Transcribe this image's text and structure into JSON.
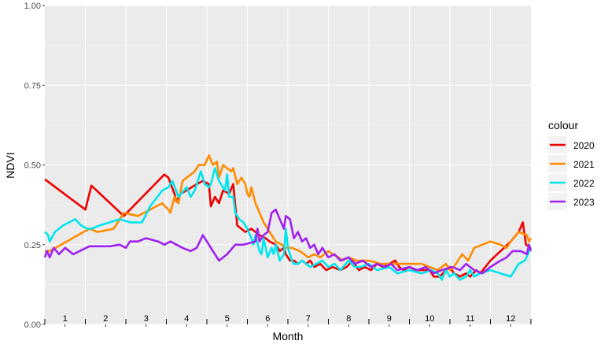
{
  "chart_data": {
    "type": "line",
    "xlabel": "Month",
    "ylabel": "NDVI",
    "ylim": [
      0,
      1
    ],
    "xlim": [
      0.5,
      12.5
    ],
    "x_tick_labels": [
      "1",
      "2",
      "3",
      "4",
      "5",
      "6",
      "7",
      "8",
      "9",
      "10",
      "11",
      "12"
    ],
    "y_tick_labels": [
      "0.00",
      "0.25",
      "0.50",
      "0.75",
      "1.00"
    ],
    "y_ticks": [
      0,
      0.25,
      0.5,
      0.75,
      1.0
    ],
    "grid": true,
    "legend": {
      "title": "colour",
      "position": "right"
    },
    "series": [
      {
        "name": "2020",
        "color": "#ee0000",
        "points": [
          [
            0.5,
            0.455
          ],
          [
            1.5,
            0.36
          ],
          [
            1.65,
            0.435
          ],
          [
            2.45,
            0.34
          ],
          [
            3.45,
            0.47
          ],
          [
            3.55,
            0.46
          ],
          [
            3.7,
            0.41
          ],
          [
            3.75,
            0.385
          ],
          [
            3.85,
            0.41
          ],
          [
            4.0,
            0.42
          ],
          [
            4.25,
            0.44
          ],
          [
            4.4,
            0.45
          ],
          [
            4.55,
            0.44
          ],
          [
            4.6,
            0.37
          ],
          [
            4.7,
            0.4
          ],
          [
            4.8,
            0.38
          ],
          [
            4.9,
            0.42
          ],
          [
            5.05,
            0.41
          ],
          [
            5.15,
            0.44
          ],
          [
            5.25,
            0.31
          ],
          [
            5.35,
            0.3
          ],
          [
            5.45,
            0.29
          ],
          [
            5.6,
            0.3
          ],
          [
            5.8,
            0.28
          ],
          [
            5.95,
            0.27
          ],
          [
            6.05,
            0.26
          ],
          [
            6.2,
            0.25
          ],
          [
            6.3,
            0.23
          ],
          [
            6.4,
            0.24
          ],
          [
            6.45,
            0.22
          ],
          [
            6.55,
            0.2
          ],
          [
            6.65,
            0.2
          ],
          [
            6.75,
            0.19
          ],
          [
            6.85,
            0.2
          ],
          [
            6.95,
            0.19
          ],
          [
            7.05,
            0.2
          ],
          [
            7.15,
            0.18
          ],
          [
            7.3,
            0.19
          ],
          [
            7.45,
            0.17
          ],
          [
            7.6,
            0.18
          ],
          [
            7.8,
            0.17
          ],
          [
            7.95,
            0.18
          ],
          [
            8.1,
            0.2
          ],
          [
            8.25,
            0.17
          ],
          [
            8.4,
            0.18
          ],
          [
            8.55,
            0.17
          ],
          [
            8.7,
            0.19
          ],
          [
            8.85,
            0.18
          ],
          [
            9.0,
            0.19
          ],
          [
            9.15,
            0.2
          ],
          [
            9.25,
            0.18
          ],
          [
            9.35,
            0.17
          ],
          [
            9.5,
            0.18
          ],
          [
            9.65,
            0.17
          ],
          [
            9.8,
            0.17
          ],
          [
            10.0,
            0.17
          ],
          [
            10.1,
            0.15
          ],
          [
            10.25,
            0.15
          ],
          [
            10.4,
            0.17
          ],
          [
            10.5,
            0.18
          ],
          [
            10.6,
            0.16
          ],
          [
            10.75,
            0.15
          ],
          [
            10.9,
            0.16
          ],
          [
            11.0,
            0.15
          ],
          [
            11.15,
            0.17
          ],
          [
            11.25,
            0.16
          ],
          [
            11.5,
            0.2
          ],
          [
            11.75,
            0.23
          ],
          [
            12.0,
            0.26
          ],
          [
            12.2,
            0.29
          ],
          [
            12.3,
            0.32
          ],
          [
            12.38,
            0.25
          ],
          [
            12.5,
            0.24
          ]
        ]
      },
      {
        "name": "2021",
        "color": "#ff8c00",
        "points": [
          [
            0.5,
            0.23
          ],
          [
            0.62,
            0.23
          ],
          [
            1.6,
            0.3
          ],
          [
            1.8,
            0.29
          ],
          [
            2.2,
            0.3
          ],
          [
            2.45,
            0.35
          ],
          [
            2.8,
            0.34
          ],
          [
            3.25,
            0.37
          ],
          [
            3.4,
            0.38
          ],
          [
            3.55,
            0.36
          ],
          [
            3.6,
            0.35
          ],
          [
            3.7,
            0.4
          ],
          [
            3.8,
            0.38
          ],
          [
            3.9,
            0.45
          ],
          [
            4.1,
            0.47
          ],
          [
            4.2,
            0.48
          ],
          [
            4.3,
            0.5
          ],
          [
            4.45,
            0.5
          ],
          [
            4.55,
            0.53
          ],
          [
            4.65,
            0.5
          ],
          [
            4.75,
            0.51
          ],
          [
            4.8,
            0.46
          ],
          [
            4.9,
            0.5
          ],
          [
            5.0,
            0.49
          ],
          [
            5.1,
            0.48
          ],
          [
            5.15,
            0.49
          ],
          [
            5.25,
            0.44
          ],
          [
            5.35,
            0.46
          ],
          [
            5.45,
            0.44
          ],
          [
            5.5,
            0.41
          ],
          [
            5.55,
            0.4
          ],
          [
            5.6,
            0.43
          ],
          [
            5.7,
            0.38
          ],
          [
            5.8,
            0.35
          ],
          [
            5.9,
            0.32
          ],
          [
            6.0,
            0.3
          ],
          [
            6.1,
            0.28
          ],
          [
            6.2,
            0.26
          ],
          [
            6.35,
            0.25
          ],
          [
            6.45,
            0.24
          ],
          [
            6.6,
            0.24
          ],
          [
            6.8,
            0.23
          ],
          [
            6.9,
            0.22
          ],
          [
            7.0,
            0.21
          ],
          [
            7.15,
            0.22
          ],
          [
            7.3,
            0.21
          ],
          [
            7.5,
            0.23
          ],
          [
            7.6,
            0.22
          ],
          [
            7.75,
            0.21
          ],
          [
            7.85,
            0.2
          ],
          [
            8.0,
            0.21
          ],
          [
            8.2,
            0.2
          ],
          [
            8.5,
            0.2
          ],
          [
            8.8,
            0.19
          ],
          [
            9.1,
            0.19
          ],
          [
            9.5,
            0.19
          ],
          [
            9.8,
            0.19
          ],
          [
            10.0,
            0.18
          ],
          [
            10.2,
            0.17
          ],
          [
            10.4,
            0.19
          ],
          [
            10.5,
            0.17
          ],
          [
            10.6,
            0.18
          ],
          [
            10.8,
            0.22
          ],
          [
            10.95,
            0.2
          ],
          [
            11.1,
            0.24
          ],
          [
            11.3,
            0.25
          ],
          [
            11.5,
            0.26
          ],
          [
            11.75,
            0.25
          ],
          [
            11.9,
            0.24
          ],
          [
            12.0,
            0.26
          ],
          [
            12.2,
            0.29
          ],
          [
            12.4,
            0.28
          ],
          [
            12.45,
            0.26
          ],
          [
            12.5,
            0.27
          ]
        ]
      },
      {
        "name": "2022",
        "color": "#00e5ee",
        "points": [
          [
            0.5,
            0.29
          ],
          [
            0.58,
            0.28
          ],
          [
            0.62,
            0.26
          ],
          [
            0.75,
            0.29
          ],
          [
            0.95,
            0.31
          ],
          [
            1.1,
            0.32
          ],
          [
            1.25,
            0.33
          ],
          [
            1.4,
            0.31
          ],
          [
            1.55,
            0.3
          ],
          [
            1.65,
            0.3
          ],
          [
            1.85,
            0.31
          ],
          [
            2.1,
            0.32
          ],
          [
            2.35,
            0.33
          ],
          [
            2.6,
            0.32
          ],
          [
            2.9,
            0.32
          ],
          [
            3.1,
            0.37
          ],
          [
            3.4,
            0.42
          ],
          [
            3.55,
            0.43
          ],
          [
            3.65,
            0.45
          ],
          [
            3.8,
            0.4
          ],
          [
            4.0,
            0.43
          ],
          [
            4.1,
            0.4
          ],
          [
            4.2,
            0.42
          ],
          [
            4.35,
            0.48
          ],
          [
            4.45,
            0.44
          ],
          [
            4.55,
            0.43
          ],
          [
            4.6,
            0.44
          ],
          [
            4.7,
            0.49
          ],
          [
            4.8,
            0.45
          ],
          [
            4.95,
            0.42
          ],
          [
            5.0,
            0.47
          ],
          [
            5.05,
            0.4
          ],
          [
            5.15,
            0.4
          ],
          [
            5.2,
            0.35
          ],
          [
            5.3,
            0.33
          ],
          [
            5.4,
            0.32
          ],
          [
            5.5,
            0.3
          ],
          [
            5.6,
            0.27
          ],
          [
            5.65,
            0.25
          ],
          [
            5.7,
            0.28
          ],
          [
            5.8,
            0.23
          ],
          [
            5.85,
            0.22
          ],
          [
            5.9,
            0.27
          ],
          [
            6.0,
            0.21
          ],
          [
            6.1,
            0.24
          ],
          [
            6.15,
            0.22
          ],
          [
            6.2,
            0.25
          ],
          [
            6.3,
            0.2
          ],
          [
            6.4,
            0.22
          ],
          [
            6.45,
            0.3
          ],
          [
            6.5,
            0.24
          ],
          [
            6.55,
            0.22
          ],
          [
            6.6,
            0.2
          ],
          [
            6.65,
            0.19
          ],
          [
            6.75,
            0.19
          ],
          [
            6.85,
            0.2
          ],
          [
            6.95,
            0.19
          ],
          [
            7.05,
            0.18
          ],
          [
            7.2,
            0.19
          ],
          [
            7.35,
            0.2
          ],
          [
            7.5,
            0.18
          ],
          [
            7.65,
            0.19
          ],
          [
            7.8,
            0.17
          ],
          [
            8.0,
            0.2
          ],
          [
            8.15,
            0.18
          ],
          [
            8.3,
            0.18
          ],
          [
            8.5,
            0.19
          ],
          [
            8.7,
            0.17
          ],
          [
            9.0,
            0.18
          ],
          [
            9.2,
            0.16
          ],
          [
            9.5,
            0.17
          ],
          [
            9.8,
            0.16
          ],
          [
            10.05,
            0.17
          ],
          [
            10.2,
            0.16
          ],
          [
            10.3,
            0.14
          ],
          [
            10.4,
            0.17
          ],
          [
            10.5,
            0.15
          ],
          [
            10.6,
            0.16
          ],
          [
            10.75,
            0.14
          ],
          [
            10.9,
            0.15
          ],
          [
            11.0,
            0.17
          ],
          [
            11.1,
            0.15
          ],
          [
            11.25,
            0.16
          ],
          [
            11.5,
            0.17
          ],
          [
            11.75,
            0.16
          ],
          [
            12.0,
            0.15
          ],
          [
            12.2,
            0.19
          ],
          [
            12.35,
            0.2
          ],
          [
            12.5,
            0.24
          ]
        ]
      },
      {
        "name": "2023",
        "color": "#a020f0",
        "points": [
          [
            0.5,
            0.21
          ],
          [
            0.55,
            0.23
          ],
          [
            0.62,
            0.21
          ],
          [
            0.72,
            0.24
          ],
          [
            0.85,
            0.22
          ],
          [
            1.0,
            0.24
          ],
          [
            1.2,
            0.22
          ],
          [
            1.6,
            0.245
          ],
          [
            2.1,
            0.245
          ],
          [
            2.35,
            0.25
          ],
          [
            2.5,
            0.24
          ],
          [
            2.6,
            0.26
          ],
          [
            2.8,
            0.26
          ],
          [
            3.0,
            0.27
          ],
          [
            3.3,
            0.26
          ],
          [
            3.45,
            0.25
          ],
          [
            3.6,
            0.26
          ],
          [
            3.75,
            0.25
          ],
          [
            3.9,
            0.24
          ],
          [
            4.1,
            0.23
          ],
          [
            4.25,
            0.24
          ],
          [
            4.4,
            0.28
          ],
          [
            4.5,
            0.26
          ],
          [
            4.65,
            0.23
          ],
          [
            4.8,
            0.2
          ],
          [
            5.0,
            0.22
          ],
          [
            5.2,
            0.25
          ],
          [
            5.4,
            0.25
          ],
          [
            5.7,
            0.26
          ],
          [
            5.75,
            0.3
          ],
          [
            5.8,
            0.26
          ],
          [
            5.9,
            0.28
          ],
          [
            6.0,
            0.29
          ],
          [
            6.1,
            0.35
          ],
          [
            6.2,
            0.36
          ],
          [
            6.3,
            0.33
          ],
          [
            6.4,
            0.3
          ],
          [
            6.45,
            0.34
          ],
          [
            6.55,
            0.33
          ],
          [
            6.65,
            0.27
          ],
          [
            6.75,
            0.29
          ],
          [
            6.85,
            0.26
          ],
          [
            6.95,
            0.27
          ],
          [
            7.05,
            0.24
          ],
          [
            7.15,
            0.25
          ],
          [
            7.25,
            0.22
          ],
          [
            7.35,
            0.24
          ],
          [
            7.5,
            0.21
          ],
          [
            7.65,
            0.22
          ],
          [
            7.8,
            0.2
          ],
          [
            8.0,
            0.21
          ],
          [
            8.15,
            0.19
          ],
          [
            8.35,
            0.2
          ],
          [
            8.55,
            0.18
          ],
          [
            8.7,
            0.19
          ],
          [
            8.9,
            0.18
          ],
          [
            9.05,
            0.19
          ],
          [
            9.2,
            0.17
          ],
          [
            9.5,
            0.18
          ],
          [
            9.7,
            0.17
          ],
          [
            9.9,
            0.18
          ],
          [
            10.1,
            0.16
          ],
          [
            10.3,
            0.17
          ],
          [
            10.55,
            0.18
          ],
          [
            10.75,
            0.17
          ],
          [
            10.9,
            0.19
          ],
          [
            11.1,
            0.17
          ],
          [
            11.3,
            0.16
          ],
          [
            11.5,
            0.18
          ],
          [
            11.75,
            0.2
          ],
          [
            11.9,
            0.21
          ],
          [
            12.05,
            0.23
          ],
          [
            12.25,
            0.23
          ],
          [
            12.4,
            0.22
          ],
          [
            12.45,
            0.25
          ],
          [
            12.5,
            0.23
          ]
        ]
      }
    ]
  }
}
